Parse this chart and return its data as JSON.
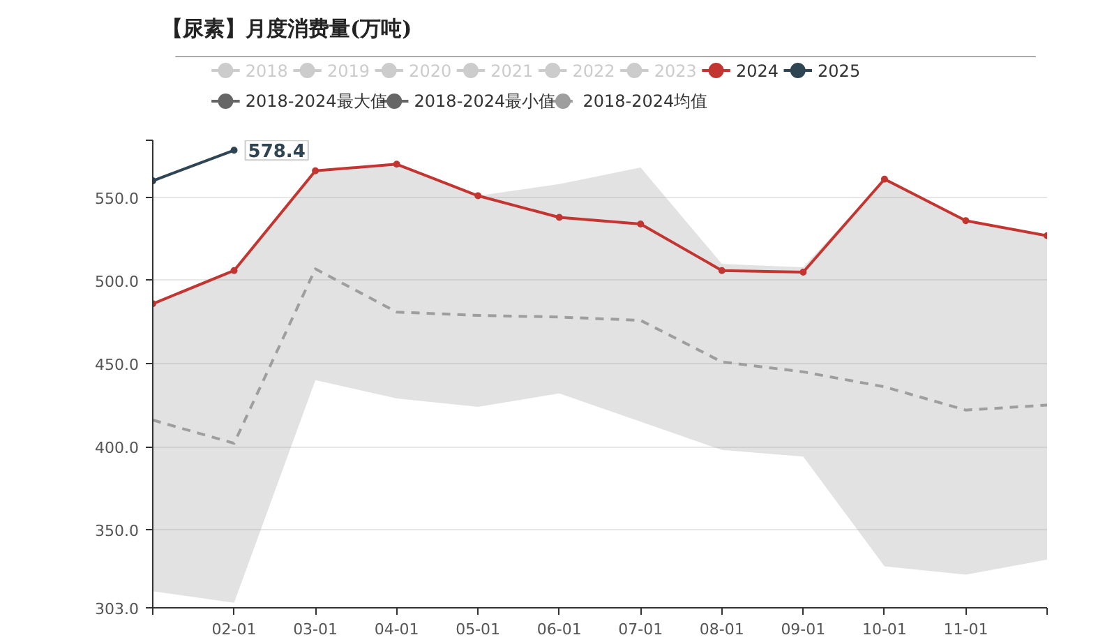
{
  "chart_data": {
    "type": "line",
    "title": "【尿素】月度消费量(万吨)",
    "categories": [
      null,
      "02-01",
      "03-01",
      "04-01",
      "05-01",
      "06-01",
      "07-01",
      "08-01",
      "09-01",
      "10-01",
      "11-01",
      null
    ],
    "ylim": [
      303,
      584.4
    ],
    "yticks": [
      {
        "value": 303,
        "label": "303.0"
      },
      {
        "value": 350,
        "label": "350.0"
      },
      {
        "value": 400,
        "label": "400.0"
      },
      {
        "value": 450,
        "label": "450.0"
      },
      {
        "value": 500,
        "label": "500.0"
      },
      {
        "value": 550,
        "label": "550.0"
      },
      {
        "value": 584.4,
        "label": null
      }
    ],
    "grid": "y",
    "legend": "top",
    "annotations": [
      {
        "text": "578.4",
        "x": "02-01",
        "y": 578.4
      }
    ],
    "series": [
      {
        "name": "2018",
        "color": "#cccccc",
        "values": [
          null,
          null,
          null,
          null,
          null,
          null,
          null,
          null,
          null,
          null,
          null,
          null
        ]
      },
      {
        "name": "2019",
        "color": "#cccccc",
        "values": [
          null,
          null,
          null,
          null,
          null,
          null,
          null,
          null,
          null,
          null,
          null,
          null
        ]
      },
      {
        "name": "2020",
        "color": "#cccccc",
        "values": [
          null,
          null,
          null,
          null,
          null,
          null,
          null,
          null,
          null,
          null,
          null,
          null
        ]
      },
      {
        "name": "2021",
        "color": "#cccccc",
        "values": [
          null,
          null,
          null,
          null,
          null,
          null,
          null,
          null,
          null,
          null,
          null,
          null
        ]
      },
      {
        "name": "2022",
        "color": "#cccccc",
        "values": [
          null,
          null,
          null,
          null,
          null,
          null,
          null,
          null,
          null,
          null,
          null,
          null
        ]
      },
      {
        "name": "2023",
        "color": "#cccccc",
        "values": [
          null,
          null,
          null,
          null,
          null,
          null,
          null,
          null,
          null,
          null,
          null,
          null
        ]
      },
      {
        "name": "2024",
        "color": "#c23531",
        "marker": "circle",
        "values": [
          486,
          506,
          566,
          570,
          551,
          538,
          534,
          506,
          505,
          561,
          536,
          527
        ]
      },
      {
        "name": "2025",
        "color": "#2f4554",
        "marker": "circle",
        "values": [
          560,
          578.4,
          null,
          null,
          null,
          null,
          null,
          null,
          null,
          null,
          null,
          null
        ]
      },
      {
        "name": "2018-2024最大值",
        "color": "#666666",
        "values": [
          null,
          null,
          null,
          null,
          null,
          null,
          null,
          null,
          null,
          null,
          null,
          null
        ]
      },
      {
        "name": "2018-2024最小值",
        "color": "#666666",
        "values": [
          null,
          null,
          null,
          null,
          null,
          null,
          null,
          null,
          null,
          null,
          null,
          null
        ]
      },
      {
        "name": "2018-2024均值",
        "color": "#9e9e9e",
        "line_style": "dashed",
        "marker": "none",
        "values": [
          416,
          402,
          507,
          481,
          479,
          478,
          476,
          451,
          445,
          436,
          422,
          425
        ],
        "upper": [
          487,
          506,
          566,
          570,
          551,
          558,
          568,
          510,
          508,
          561,
          536,
          527
        ],
        "lower": [
          313,
          306,
          440,
          429,
          424,
          432,
          415,
          398,
          394,
          328,
          323,
          332
        ]
      }
    ]
  }
}
